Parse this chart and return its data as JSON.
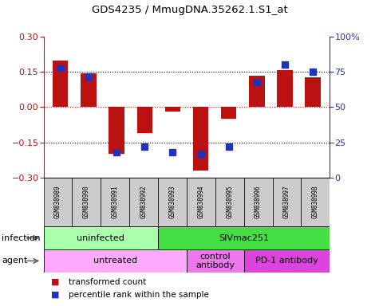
{
  "title": "GDS4235 / MmugDNA.35262.1.S1_at",
  "samples": [
    "GSM838989",
    "GSM838990",
    "GSM838991",
    "GSM838992",
    "GSM838993",
    "GSM838994",
    "GSM838995",
    "GSM838996",
    "GSM838997",
    "GSM838998"
  ],
  "red_values": [
    0.2,
    0.145,
    -0.2,
    -0.11,
    -0.02,
    -0.27,
    -0.05,
    0.135,
    0.157,
    0.128
  ],
  "blue_values": [
    78,
    72,
    18,
    22,
    18,
    17,
    22,
    68,
    80,
    75
  ],
  "red_color": "#BB1111",
  "blue_color": "#2233BB",
  "ylim_left": [
    -0.3,
    0.3
  ],
  "ylim_right": [
    0,
    100
  ],
  "yticks_left": [
    -0.3,
    -0.15,
    0.0,
    0.15,
    0.3
  ],
  "yticks_right": [
    0,
    25,
    50,
    75,
    100
  ],
  "ytick_labels_right": [
    "0",
    "25",
    "50",
    "75",
    "100%"
  ],
  "hlines": [
    -0.15,
    0.0,
    0.15
  ],
  "hline_colors": [
    "black",
    "red",
    "black"
  ],
  "hline_styles": [
    "dotted",
    "dotted",
    "dotted"
  ],
  "infection_groups": [
    {
      "label": "uninfected",
      "start": 0,
      "end": 4,
      "color": "#AAFFAA"
    },
    {
      "label": "SIVmac251",
      "start": 4,
      "end": 10,
      "color": "#44DD44"
    }
  ],
  "agent_groups": [
    {
      "label": "untreated",
      "start": 0,
      "end": 5,
      "color": "#FFAAFF"
    },
    {
      "label": "control\nantibody",
      "start": 5,
      "end": 7,
      "color": "#EE77EE"
    },
    {
      "label": "PD-1 antibody",
      "start": 7,
      "end": 10,
      "color": "#DD44DD"
    }
  ],
  "legend_items": [
    {
      "label": "transformed count",
      "color": "#BB1111"
    },
    {
      "label": "percentile rank within the sample",
      "color": "#2233BB"
    }
  ],
  "bar_width": 0.55,
  "square_size": 6,
  "sample_bg": "#CCCCCC",
  "sample_fontsize": 5.5,
  "infection_fontsize": 8,
  "agent_fontsize": 8
}
